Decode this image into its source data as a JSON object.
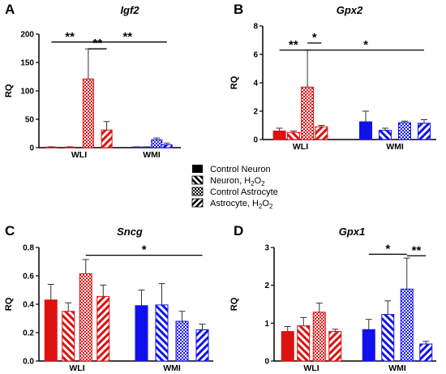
{
  "legend": {
    "items": [
      {
        "label": "Control Neuron",
        "pattern": "solid"
      },
      {
        "label_main": "Neuron, H",
        "label_sub1": "2",
        "label_mid": "O",
        "label_sub2": "2",
        "pattern": "stripe"
      },
      {
        "label": "Control Astrocyte",
        "pattern": "check"
      },
      {
        "label_main": "Astrocyte, H",
        "label_sub1": "2",
        "label_mid": "O",
        "label_sub2": "2",
        "pattern": "stripe-back"
      }
    ]
  },
  "colors": {
    "WLI": "#dd1111",
    "WMI": "#1111ee",
    "axis": "#000000"
  },
  "chart_data": [
    {
      "type": "bar",
      "panel": "A",
      "title": "Igf2",
      "ylabel": "RQ",
      "ylim": [
        0,
        200
      ],
      "yticks": [
        0,
        50,
        100,
        150,
        200
      ],
      "categories": [
        "WLI",
        "WMI"
      ],
      "series": [
        {
          "name": "Control Neuron",
          "values": [
            1,
            1
          ],
          "errors": [
            0.5,
            0.5
          ]
        },
        {
          "name": "Neuron, H2O2",
          "values": [
            1,
            1
          ],
          "errors": [
            0.5,
            0.5
          ]
        },
        {
          "name": "Control Astrocyte",
          "values": [
            121,
            14
          ],
          "errors": [
            53,
            3
          ]
        },
        {
          "name": "Astrocyte, H2O2",
          "values": [
            31,
            5
          ],
          "errors": [
            15,
            3
          ]
        }
      ],
      "significance": [
        {
          "label": "**",
          "from": [
            0,
            0
          ],
          "to": [
            0,
            2
          ],
          "y": 186
        },
        {
          "label": "**",
          "from": [
            0,
            2
          ],
          "to": [
            0,
            3
          ],
          "y": 174
        },
        {
          "label": "**",
          "from": [
            0,
            2
          ],
          "to": [
            1,
            3
          ],
          "y": 186
        }
      ]
    },
    {
      "type": "bar",
      "panel": "B",
      "title": "Gpx2",
      "ylabel": "RQ",
      "ylim": [
        0,
        8
      ],
      "yticks": [
        0,
        2,
        4,
        6,
        8
      ],
      "categories": [
        "WLI",
        "WMI"
      ],
      "series": [
        {
          "name": "Control Neuron",
          "values": [
            0.6,
            1.25
          ],
          "errors": [
            0.2,
            0.75
          ]
        },
        {
          "name": "Neuron, H2O2",
          "values": [
            0.5,
            0.65
          ],
          "errors": [
            0.1,
            0.15
          ]
        },
        {
          "name": "Control Astrocyte",
          "values": [
            3.7,
            1.2
          ],
          "errors": [
            2.6,
            0.1
          ]
        },
        {
          "name": "Astrocyte, H2O2",
          "values": [
            0.9,
            1.15
          ],
          "errors": [
            0.1,
            0.25
          ]
        }
      ],
      "significance": [
        {
          "label": "**",
          "from": [
            0,
            0
          ],
          "to": [
            0,
            2
          ],
          "y": 6.3
        },
        {
          "label": "*",
          "from": [
            0,
            2
          ],
          "to": [
            0,
            3
          ],
          "y": 6.8
        },
        {
          "label": "*",
          "from": [
            0,
            2
          ],
          "to": [
            1,
            3
          ],
          "y": 6.3
        }
      ]
    },
    {
      "type": "bar",
      "panel": "C",
      "title": "Sncg",
      "ylabel": "RQ",
      "ylim": [
        0,
        0.8
      ],
      "yticks": [
        0.0,
        0.2,
        0.4,
        0.6,
        0.8
      ],
      "categories": [
        "WLI",
        "WMI"
      ],
      "series": [
        {
          "name": "Control Neuron",
          "values": [
            0.43,
            0.39
          ],
          "errors": [
            0.11,
            0.11
          ]
        },
        {
          "name": "Neuron, H2O2",
          "values": [
            0.35,
            0.395
          ],
          "errors": [
            0.06,
            0.15
          ]
        },
        {
          "name": "Control Astrocyte",
          "values": [
            0.615,
            0.28
          ],
          "errors": [
            0.1,
            0.07
          ]
        },
        {
          "name": "Astrocyte, H2O2",
          "values": [
            0.455,
            0.22
          ],
          "errors": [
            0.08,
            0.04
          ]
        }
      ],
      "significance": [
        {
          "label": "*",
          "from": [
            0,
            2
          ],
          "to": [
            1,
            3
          ],
          "y": 0.745
        }
      ]
    },
    {
      "type": "bar",
      "panel": "D",
      "title": "Gpx1",
      "ylabel": "RQ",
      "ylim": [
        0,
        3
      ],
      "yticks": [
        0,
        1,
        2,
        3
      ],
      "categories": [
        "WLI",
        "WMI"
      ],
      "series": [
        {
          "name": "Control Neuron",
          "values": [
            0.78,
            0.83
          ],
          "errors": [
            0.13,
            0.27
          ]
        },
        {
          "name": "Neuron, H2O2",
          "values": [
            0.93,
            1.23
          ],
          "errors": [
            0.22,
            0.36
          ]
        },
        {
          "name": "Control Astrocyte",
          "values": [
            1.29,
            1.9
          ],
          "errors": [
            0.24,
            0.82
          ]
        },
        {
          "name": "Astrocyte, H2O2",
          "values": [
            0.78,
            0.45
          ],
          "errors": [
            0.06,
            0.07
          ]
        }
      ],
      "significance": [
        {
          "label": "*",
          "from": [
            1,
            0
          ],
          "to": [
            1,
            2
          ],
          "y": 2.82
        },
        {
          "label": "**",
          "from": [
            1,
            2
          ],
          "to": [
            1,
            3
          ],
          "y": 2.78
        }
      ]
    }
  ]
}
